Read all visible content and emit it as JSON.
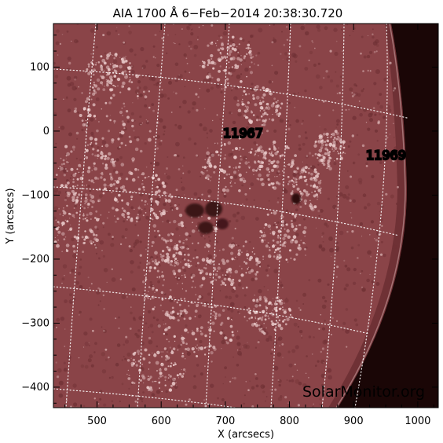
{
  "title": "AIA 1700 Å   6−Feb−2014 20:38:30.720",
  "xlabel": "X (arcsecs)",
  "ylabel": "Y (arcsecs)",
  "x_ticks": [
    "500",
    "600",
    "700",
    "800",
    "900",
    "1000"
  ],
  "y_ticks": [
    "100",
    "0",
    "−100",
    "−200",
    "−300",
    "−400"
  ],
  "x_tick_values": [
    500,
    600,
    700,
    800,
    900,
    1000
  ],
  "y_tick_values": [
    100,
    0,
    -100,
    -200,
    -300,
    -400
  ],
  "x_range": [
    432,
    1032
  ],
  "y_range": [
    -432,
    168
  ],
  "active_regions": [
    {
      "label": "11967",
      "x": 745,
      "y": -5
    },
    {
      "label": "11969",
      "x": 965,
      "y": -40
    }
  ],
  "watermark": "SolarMonitor.org",
  "colors": {
    "disk": "#8a4448",
    "disk_dark": "#6f3034",
    "plage": "#e8c8c8",
    "offlimb": "#1a0606",
    "grid": "#ffffff",
    "frame": "#000000"
  }
}
